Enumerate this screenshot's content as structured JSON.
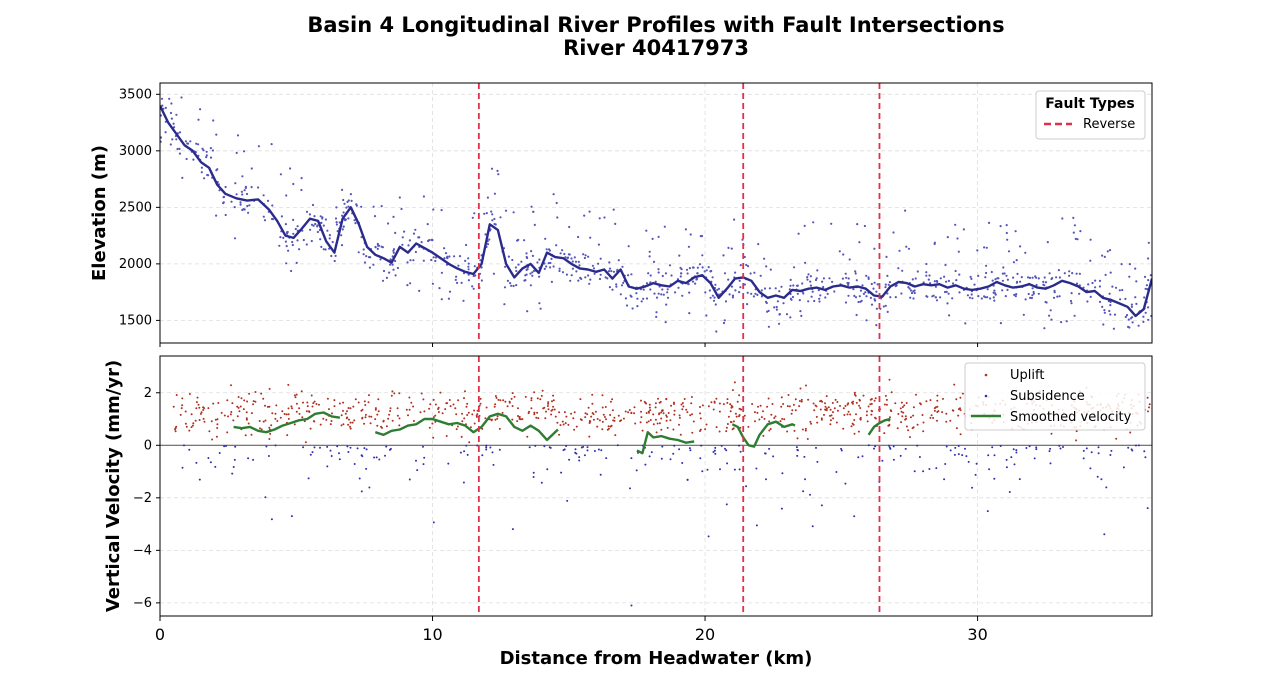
{
  "title_line1": "Basin 4 Longitudinal River Profiles with Fault Intersections",
  "title_line2": "River 40417973",
  "colors": {
    "profile_line": "#2b2b8c",
    "profile_points": "#5555bb",
    "fault": "#e0304a",
    "uplift": "#b03020",
    "subsidence": "#3030b0",
    "smoothed": "#2e7d32",
    "zero_line": "#666666",
    "grid": "#dddddd"
  },
  "chart_data": [
    {
      "type": "line",
      "panel": "elevation",
      "ylabel": "Elevation (m)",
      "xlim": [
        0,
        36.4
      ],
      "ylim": [
        1300,
        3600
      ],
      "yticks": [
        1500,
        2000,
        2500,
        3000,
        3500
      ],
      "grid": true,
      "legend": {
        "title": "Fault Types",
        "placement": "top-right",
        "entries": [
          "Reverse"
        ]
      },
      "faults": {
        "name": "Reverse",
        "x": [
          11.7,
          21.4,
          26.4
        ]
      },
      "series": [
        {
          "x": [
            0,
            0.3,
            0.6,
            0.9,
            1.2,
            1.5,
            1.8,
            2.1,
            2.4,
            2.8,
            3.2,
            3.6,
            4.0,
            4.3,
            4.6,
            4.9,
            5.2,
            5.5,
            5.8,
            6.1,
            6.4,
            6.7,
            7.0,
            7.3,
            7.6,
            7.9,
            8.2,
            8.5,
            8.8,
            9.1,
            9.4,
            9.7,
            10.0,
            10.3,
            10.6,
            10.9,
            11.2,
            11.5,
            11.8,
            12.1,
            12.4,
            12.7,
            13.0,
            13.3,
            13.6,
            13.9,
            14.2,
            14.5,
            14.8,
            15.1,
            15.4,
            15.7,
            16.0,
            16.3,
            16.6,
            16.9,
            17.2,
            17.5,
            17.8,
            18.1,
            18.4,
            18.7,
            19.0,
            19.3,
            19.6,
            19.9,
            20.2,
            20.5,
            20.8,
            21.1,
            21.4,
            21.7,
            22.0,
            22.3,
            22.6,
            22.9,
            23.2,
            23.5,
            23.8,
            24.1,
            24.4,
            24.7,
            25.0,
            25.3,
            25.6,
            25.9,
            26.2,
            26.5,
            26.8,
            27.1,
            27.4,
            27.7,
            28.0,
            28.3,
            28.6,
            28.9,
            29.2,
            29.5,
            29.8,
            30.1,
            30.4,
            30.7,
            31.0,
            31.3,
            31.6,
            31.9,
            32.2,
            32.5,
            32.8,
            33.1,
            33.4,
            33.7,
            34.0,
            34.3,
            34.6,
            34.9,
            35.2,
            35.5,
            35.8,
            36.1,
            36.4
          ],
          "values": [
            3400,
            3250,
            3150,
            3050,
            3000,
            2900,
            2850,
            2700,
            2620,
            2580,
            2560,
            2570,
            2480,
            2380,
            2250,
            2230,
            2310,
            2400,
            2380,
            2200,
            2100,
            2400,
            2500,
            2350,
            2150,
            2080,
            2050,
            2010,
            2150,
            2100,
            2180,
            2140,
            2100,
            2050,
            2000,
            1960,
            1930,
            1910,
            2000,
            2350,
            2300,
            2000,
            1880,
            1960,
            2000,
            1920,
            2100,
            2060,
            2050,
            2000,
            1960,
            1950,
            1930,
            1950,
            1870,
            1950,
            1800,
            1780,
            1800,
            1830,
            1810,
            1800,
            1850,
            1830,
            1880,
            1900,
            1830,
            1700,
            1780,
            1870,
            1880,
            1850,
            1750,
            1700,
            1720,
            1700,
            1770,
            1760,
            1780,
            1790,
            1770,
            1800,
            1810,
            1790,
            1800,
            1780,
            1720,
            1710,
            1800,
            1840,
            1830,
            1800,
            1820,
            1810,
            1820,
            1790,
            1810,
            1780,
            1770,
            1780,
            1800,
            1840,
            1810,
            1790,
            1800,
            1820,
            1790,
            1780,
            1810,
            1850,
            1830,
            1800,
            1750,
            1760,
            1700,
            1680,
            1650,
            1620,
            1540,
            1600,
            1870
          ]
        }
      ]
    },
    {
      "type": "scatter",
      "panel": "velocity",
      "xlabel": "Distance from Headwater (km)",
      "ylabel": "Vertical Velocity (mm/yr)",
      "xlim": [
        0,
        36.4
      ],
      "ylim": [
        -6.5,
        3.4
      ],
      "yticks": [
        -6,
        -4,
        -2,
        0,
        2
      ],
      "xticks": [
        0,
        10,
        20,
        30
      ],
      "grid": true,
      "legend": {
        "placement": "top-right",
        "entries": [
          "Uplift",
          "Subsidence",
          "Smoothed velocity"
        ]
      },
      "faults": {
        "name": "Reverse",
        "x": [
          11.7,
          21.4,
          26.4
        ]
      },
      "series": [
        {
          "name": "Uplift",
          "y_range": [
            0,
            2.8
          ]
        },
        {
          "name": "Subsidence",
          "y_range": [
            -6.1,
            0
          ]
        },
        {
          "name": "Smoothed velocity",
          "segments": [
            {
              "x": [
                2.7,
                3.0,
                3.3,
                3.6,
                3.9,
                4.2,
                4.5,
                4.8,
                5.1,
                5.4,
                5.7,
                6.0,
                6.3,
                6.6
              ],
              "values": [
                0.7,
                0.65,
                0.7,
                0.55,
                0.5,
                0.6,
                0.75,
                0.85,
                0.95,
                1.0,
                1.2,
                1.25,
                1.1,
                1.05
              ]
            },
            {
              "x": [
                7.9,
                8.2,
                8.5,
                8.8,
                9.1,
                9.4,
                9.7,
                10.0,
                10.3,
                10.6,
                10.9,
                11.2,
                11.5,
                11.8,
                12.1,
                12.4,
                12.7,
                13.0,
                13.3,
                13.6,
                13.9,
                14.2,
                14.6
              ],
              "values": [
                0.5,
                0.4,
                0.55,
                0.6,
                0.75,
                0.8,
                1.0,
                1.0,
                0.9,
                0.8,
                0.85,
                0.75,
                0.5,
                0.7,
                1.1,
                1.2,
                1.1,
                0.7,
                0.55,
                0.75,
                0.55,
                0.2,
                0.6
              ]
            },
            {
              "x": [
                17.5,
                17.7,
                17.9,
                18.1,
                18.4,
                18.7,
                19.0,
                19.3,
                19.6
              ],
              "values": [
                -0.2,
                -0.3,
                0.5,
                0.3,
                0.35,
                0.25,
                0.2,
                0.1,
                0.15
              ]
            },
            {
              "x": [
                21.0,
                21.2,
                21.4,
                21.6,
                21.8,
                22.0,
                22.3,
                22.6,
                22.9,
                23.2,
                23.3
              ],
              "values": [
                0.8,
                0.7,
                0.3,
                0.0,
                -0.05,
                0.4,
                0.8,
                0.9,
                0.7,
                0.8,
                0.75
              ]
            },
            {
              "x": [
                26.0,
                26.2,
                26.4,
                26.6,
                26.8
              ],
              "values": [
                0.4,
                0.7,
                0.85,
                0.95,
                1.0
              ]
            }
          ]
        }
      ]
    }
  ]
}
